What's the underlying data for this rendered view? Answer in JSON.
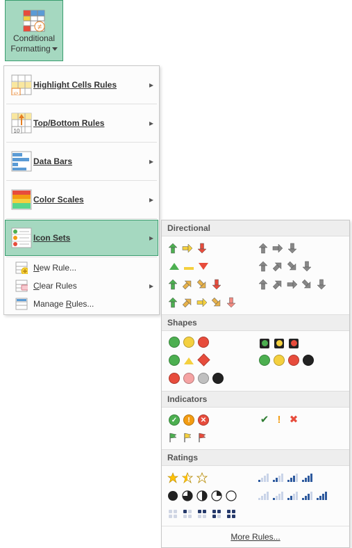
{
  "ribbon": {
    "cf_label_line1": "Conditional",
    "cf_label_line2": "Formatting"
  },
  "menu": {
    "highlight": "Highlight Cells Rules",
    "topbottom": "Top/Bottom Rules",
    "databars": "Data Bars",
    "colorscales": "Color Scales",
    "iconsets": "Icon Sets",
    "newrule": "New Rule...",
    "clearrules": "Clear Rules",
    "managerules": "Manage Rules..."
  },
  "sections": {
    "directional": "Directional",
    "shapes": "Shapes",
    "indicators": "Indicators",
    "ratings": "Ratings",
    "more": "More Rules..."
  },
  "colors": {
    "hover_bg": "#a5d8c0",
    "hover_border": "#3a9d6f",
    "menu_bg": "#fcfcfc",
    "menu_border": "#c8c8c8",
    "section_bg": "#eeeeee",
    "green": "#4caf50",
    "yellow": "#f4d03f",
    "red": "#e74c3c",
    "gray": "#888888",
    "pink": "#f5a3a3",
    "silver": "#c0c0c0",
    "black": "#222222",
    "orange": "#f39c12",
    "amber": "#ffc107",
    "blue": "#2e5a9e",
    "light_red": "#f28b82",
    "diagonal_amber": "#e8b24a",
    "dark_green": "#2e7d32",
    "navy": "#263a6b"
  },
  "iconsets": {
    "directional": [
      {
        "id": "dir-3arrows-colored",
        "cells": [
          {
            "t": "arrow",
            "dir": "up",
            "c": "green"
          },
          {
            "t": "arrow",
            "dir": "right",
            "c": "yellow"
          },
          {
            "t": "arrow",
            "dir": "down",
            "c": "red"
          }
        ]
      },
      {
        "id": "dir-3arrows-gray",
        "cells": [
          {
            "t": "arrow",
            "dir": "up",
            "c": "gray"
          },
          {
            "t": "arrow",
            "dir": "right",
            "c": "gray"
          },
          {
            "t": "arrow",
            "dir": "down",
            "c": "gray"
          }
        ]
      },
      {
        "id": "dir-3triangles",
        "cells": [
          {
            "t": "tri",
            "dir": "up",
            "c": "green"
          },
          {
            "t": "dash",
            "c": "yellow"
          },
          {
            "t": "tri",
            "dir": "down",
            "c": "red"
          }
        ]
      },
      {
        "id": "dir-4arrows-gray",
        "cells": [
          {
            "t": "arrow",
            "dir": "up",
            "c": "gray"
          },
          {
            "t": "arrow",
            "dir": "upright",
            "c": "gray"
          },
          {
            "t": "arrow",
            "dir": "downright",
            "c": "gray"
          },
          {
            "t": "arrow",
            "dir": "down",
            "c": "gray"
          }
        ]
      },
      {
        "id": "dir-4arrows-colored",
        "cells": [
          {
            "t": "arrow",
            "dir": "up",
            "c": "green"
          },
          {
            "t": "arrow",
            "dir": "upright",
            "c": "diagonal_amber"
          },
          {
            "t": "arrow",
            "dir": "downright",
            "c": "diagonal_amber"
          },
          {
            "t": "arrow",
            "dir": "down",
            "c": "red"
          }
        ]
      },
      {
        "id": "dir-5arrows-gray",
        "cells": [
          {
            "t": "arrow",
            "dir": "up",
            "c": "gray"
          },
          {
            "t": "arrow",
            "dir": "upright",
            "c": "gray"
          },
          {
            "t": "arrow",
            "dir": "right",
            "c": "gray"
          },
          {
            "t": "arrow",
            "dir": "downright",
            "c": "gray"
          },
          {
            "t": "arrow",
            "dir": "down",
            "c": "gray"
          }
        ]
      },
      {
        "id": "dir-5arrows-colored",
        "cells": [
          {
            "t": "arrow",
            "dir": "up",
            "c": "green"
          },
          {
            "t": "arrow",
            "dir": "upright",
            "c": "diagonal_amber"
          },
          {
            "t": "arrow",
            "dir": "right",
            "c": "yellow"
          },
          {
            "t": "arrow",
            "dir": "downright",
            "c": "diagonal_amber"
          },
          {
            "t": "arrow",
            "dir": "down",
            "c": "light_red"
          }
        ]
      }
    ],
    "shapes": [
      {
        "id": "shp-3traffic-unrimmed",
        "cells": [
          {
            "t": "circle",
            "c": "green"
          },
          {
            "t": "circle",
            "c": "yellow"
          },
          {
            "t": "circle",
            "c": "red"
          }
        ]
      },
      {
        "id": "shp-3traffic-rimmed",
        "cells": [
          {
            "t": "rsquare",
            "c": "green"
          },
          {
            "t": "rsquare",
            "c": "yellow"
          },
          {
            "t": "rsquare",
            "c": "red"
          }
        ]
      },
      {
        "id": "shp-3signs",
        "cells": [
          {
            "t": "circle",
            "c": "green"
          },
          {
            "t": "tri",
            "dir": "up",
            "c": "yellow"
          },
          {
            "t": "diamond",
            "c": "red"
          }
        ]
      },
      {
        "id": "shp-4traffic",
        "cells": [
          {
            "t": "circle",
            "c": "green"
          },
          {
            "t": "circle",
            "c": "yellow"
          },
          {
            "t": "circle",
            "c": "red"
          },
          {
            "t": "circle",
            "c": "black"
          }
        ]
      },
      {
        "id": "shp-redtoblack",
        "cells": [
          {
            "t": "circle",
            "c": "red"
          },
          {
            "t": "circle",
            "c": "pink"
          },
          {
            "t": "circle",
            "c": "silver"
          },
          {
            "t": "circle",
            "c": "black"
          }
        ]
      }
    ],
    "indicators": [
      {
        "id": "ind-3symbols-circled",
        "cells": [
          {
            "t": "circle",
            "c": "green",
            "mark": "✓"
          },
          {
            "t": "circle",
            "c": "orange",
            "mark": "!"
          },
          {
            "t": "circle",
            "c": "red",
            "mark": "✕"
          }
        ]
      },
      {
        "id": "ind-3symbols-uncircled",
        "cells": [
          {
            "t": "text",
            "v": "✔",
            "c": "dark_green"
          },
          {
            "t": "text",
            "v": "!",
            "c": "orange",
            "bold": true
          },
          {
            "t": "text",
            "v": "✖",
            "c": "red"
          }
        ]
      },
      {
        "id": "ind-3flags",
        "cells": [
          {
            "t": "flag",
            "c": "green"
          },
          {
            "t": "flag",
            "c": "yellow"
          },
          {
            "t": "flag",
            "c": "red"
          }
        ]
      }
    ],
    "ratings": [
      {
        "id": "rat-3stars",
        "cells": [
          {
            "t": "star",
            "fill": 1,
            "c": "amber"
          },
          {
            "t": "star",
            "fill": 0.5,
            "c": "amber"
          },
          {
            "t": "star",
            "fill": 0,
            "c": "amber"
          }
        ]
      },
      {
        "id": "rat-4ratings-bars",
        "cells": [
          {
            "t": "bars",
            "n": 1
          },
          {
            "t": "bars",
            "n": 2
          },
          {
            "t": "bars",
            "n": 3
          },
          {
            "t": "bars",
            "n": 4
          }
        ]
      },
      {
        "id": "rat-5quarters",
        "cells": [
          {
            "t": "pie",
            "f": 1
          },
          {
            "t": "pie",
            "f": 0.75
          },
          {
            "t": "pie",
            "f": 0.5
          },
          {
            "t": "pie",
            "f": 0.25
          },
          {
            "t": "pie",
            "f": 0
          }
        ]
      },
      {
        "id": "rat-5ratings-bars",
        "cells": [
          {
            "t": "bars",
            "n": 0
          },
          {
            "t": "bars",
            "n": 1
          },
          {
            "t": "bars",
            "n": 2
          },
          {
            "t": "bars",
            "n": 3
          },
          {
            "t": "bars",
            "n": 4
          }
        ]
      },
      {
        "id": "rat-5boxes",
        "cells": [
          {
            "t": "box4",
            "f": 0
          },
          {
            "t": "box4",
            "f": 1
          },
          {
            "t": "box4",
            "f": 2
          },
          {
            "t": "box4",
            "f": 3
          },
          {
            "t": "box4",
            "f": 4
          }
        ]
      }
    ]
  }
}
